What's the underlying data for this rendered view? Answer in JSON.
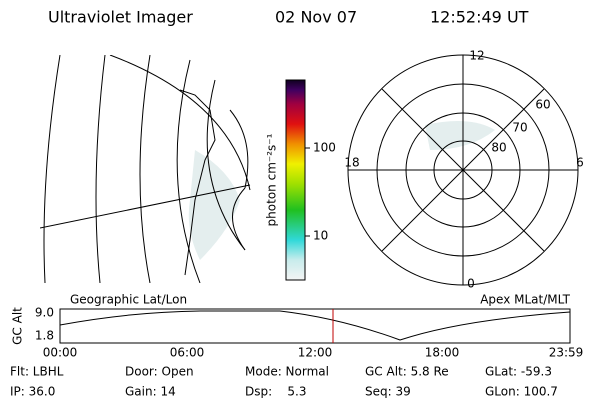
{
  "header": {
    "title": "Ultraviolet Imager",
    "date": "02 Nov 07",
    "time": "12:52:49 UT"
  },
  "colorbar": {
    "label": "photon cm⁻²s⁻¹",
    "ticks": [
      "100",
      "10"
    ]
  },
  "map": {
    "label": "Geographic Lat/Lon"
  },
  "polar": {
    "label": "Apex MLat/MLT",
    "mlt": [
      "12",
      "18",
      "6",
      "0"
    ],
    "mlat": [
      "60",
      "70",
      "80"
    ]
  },
  "altitude": {
    "axis_label": "GC Alt",
    "yticks": [
      "9.0",
      "1.8"
    ],
    "xticks": [
      "00:00",
      "06:00",
      "12:00",
      "18:00",
      "23:59"
    ]
  },
  "info": {
    "rows": [
      [
        "Flt: LBHL",
        "Door: Open",
        "Mode: Normal",
        "GC Alt: 5.8 Re",
        "GLat: -59.3"
      ],
      [
        "IP: 36.0",
        "Gain: 14",
        "Dsp:    5.3",
        "Seq: 39",
        "GLon: 100.7"
      ]
    ]
  }
}
